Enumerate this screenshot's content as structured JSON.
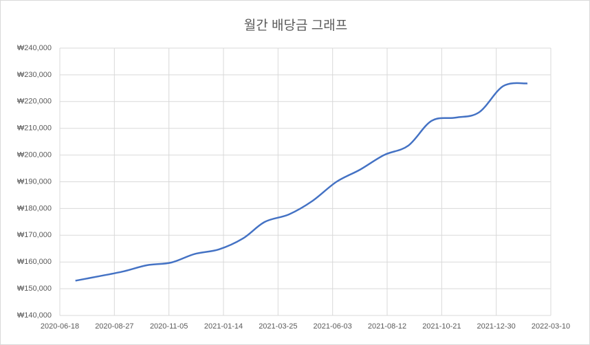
{
  "chart_data": {
    "type": "line",
    "title": "월간 배당금 그래프",
    "x": [
      "2020-07-08",
      "2020-08-08",
      "2020-09-08",
      "2020-10-08",
      "2020-11-08",
      "2020-12-08",
      "2021-01-08",
      "2021-02-08",
      "2021-03-08",
      "2021-04-08",
      "2021-05-08",
      "2021-06-08",
      "2021-07-08",
      "2021-08-08",
      "2021-09-08",
      "2021-10-08",
      "2021-11-08",
      "2021-12-08",
      "2022-01-08",
      "2022-02-08"
    ],
    "series": [
      {
        "name": "배당금",
        "color": "#4472c4",
        "values": [
          153000,
          154700,
          156500,
          158800,
          159800,
          163000,
          164700,
          168800,
          175000,
          177800,
          182800,
          190000,
          194500,
          200000,
          203500,
          212800,
          214000,
          216000,
          225800,
          226800
        ]
      }
    ],
    "xlim": [
      "2020-06-18",
      "2022-03-10"
    ],
    "xticks": [
      "2020-06-18",
      "2020-08-27",
      "2020-11-05",
      "2021-01-14",
      "2021-03-25",
      "2021-06-03",
      "2021-08-12",
      "2021-10-21",
      "2021-12-30",
      "2022-03-10"
    ],
    "ylim": [
      140000,
      240000
    ],
    "yticks": [
      {
        "value": 140000,
        "label": "₩140,000"
      },
      {
        "value": 150000,
        "label": "₩150,000"
      },
      {
        "value": 160000,
        "label": "₩160,000"
      },
      {
        "value": 170000,
        "label": "₩170,000"
      },
      {
        "value": 180000,
        "label": "₩180,000"
      },
      {
        "value": 190000,
        "label": "₩190,000"
      },
      {
        "value": 200000,
        "label": "₩200,000"
      },
      {
        "value": 210000,
        "label": "₩210,000"
      },
      {
        "value": 220000,
        "label": "₩220,000"
      },
      {
        "value": 230000,
        "label": "₩230,000"
      },
      {
        "value": 240000,
        "label": "₩240,000"
      }
    ],
    "grid": true
  }
}
